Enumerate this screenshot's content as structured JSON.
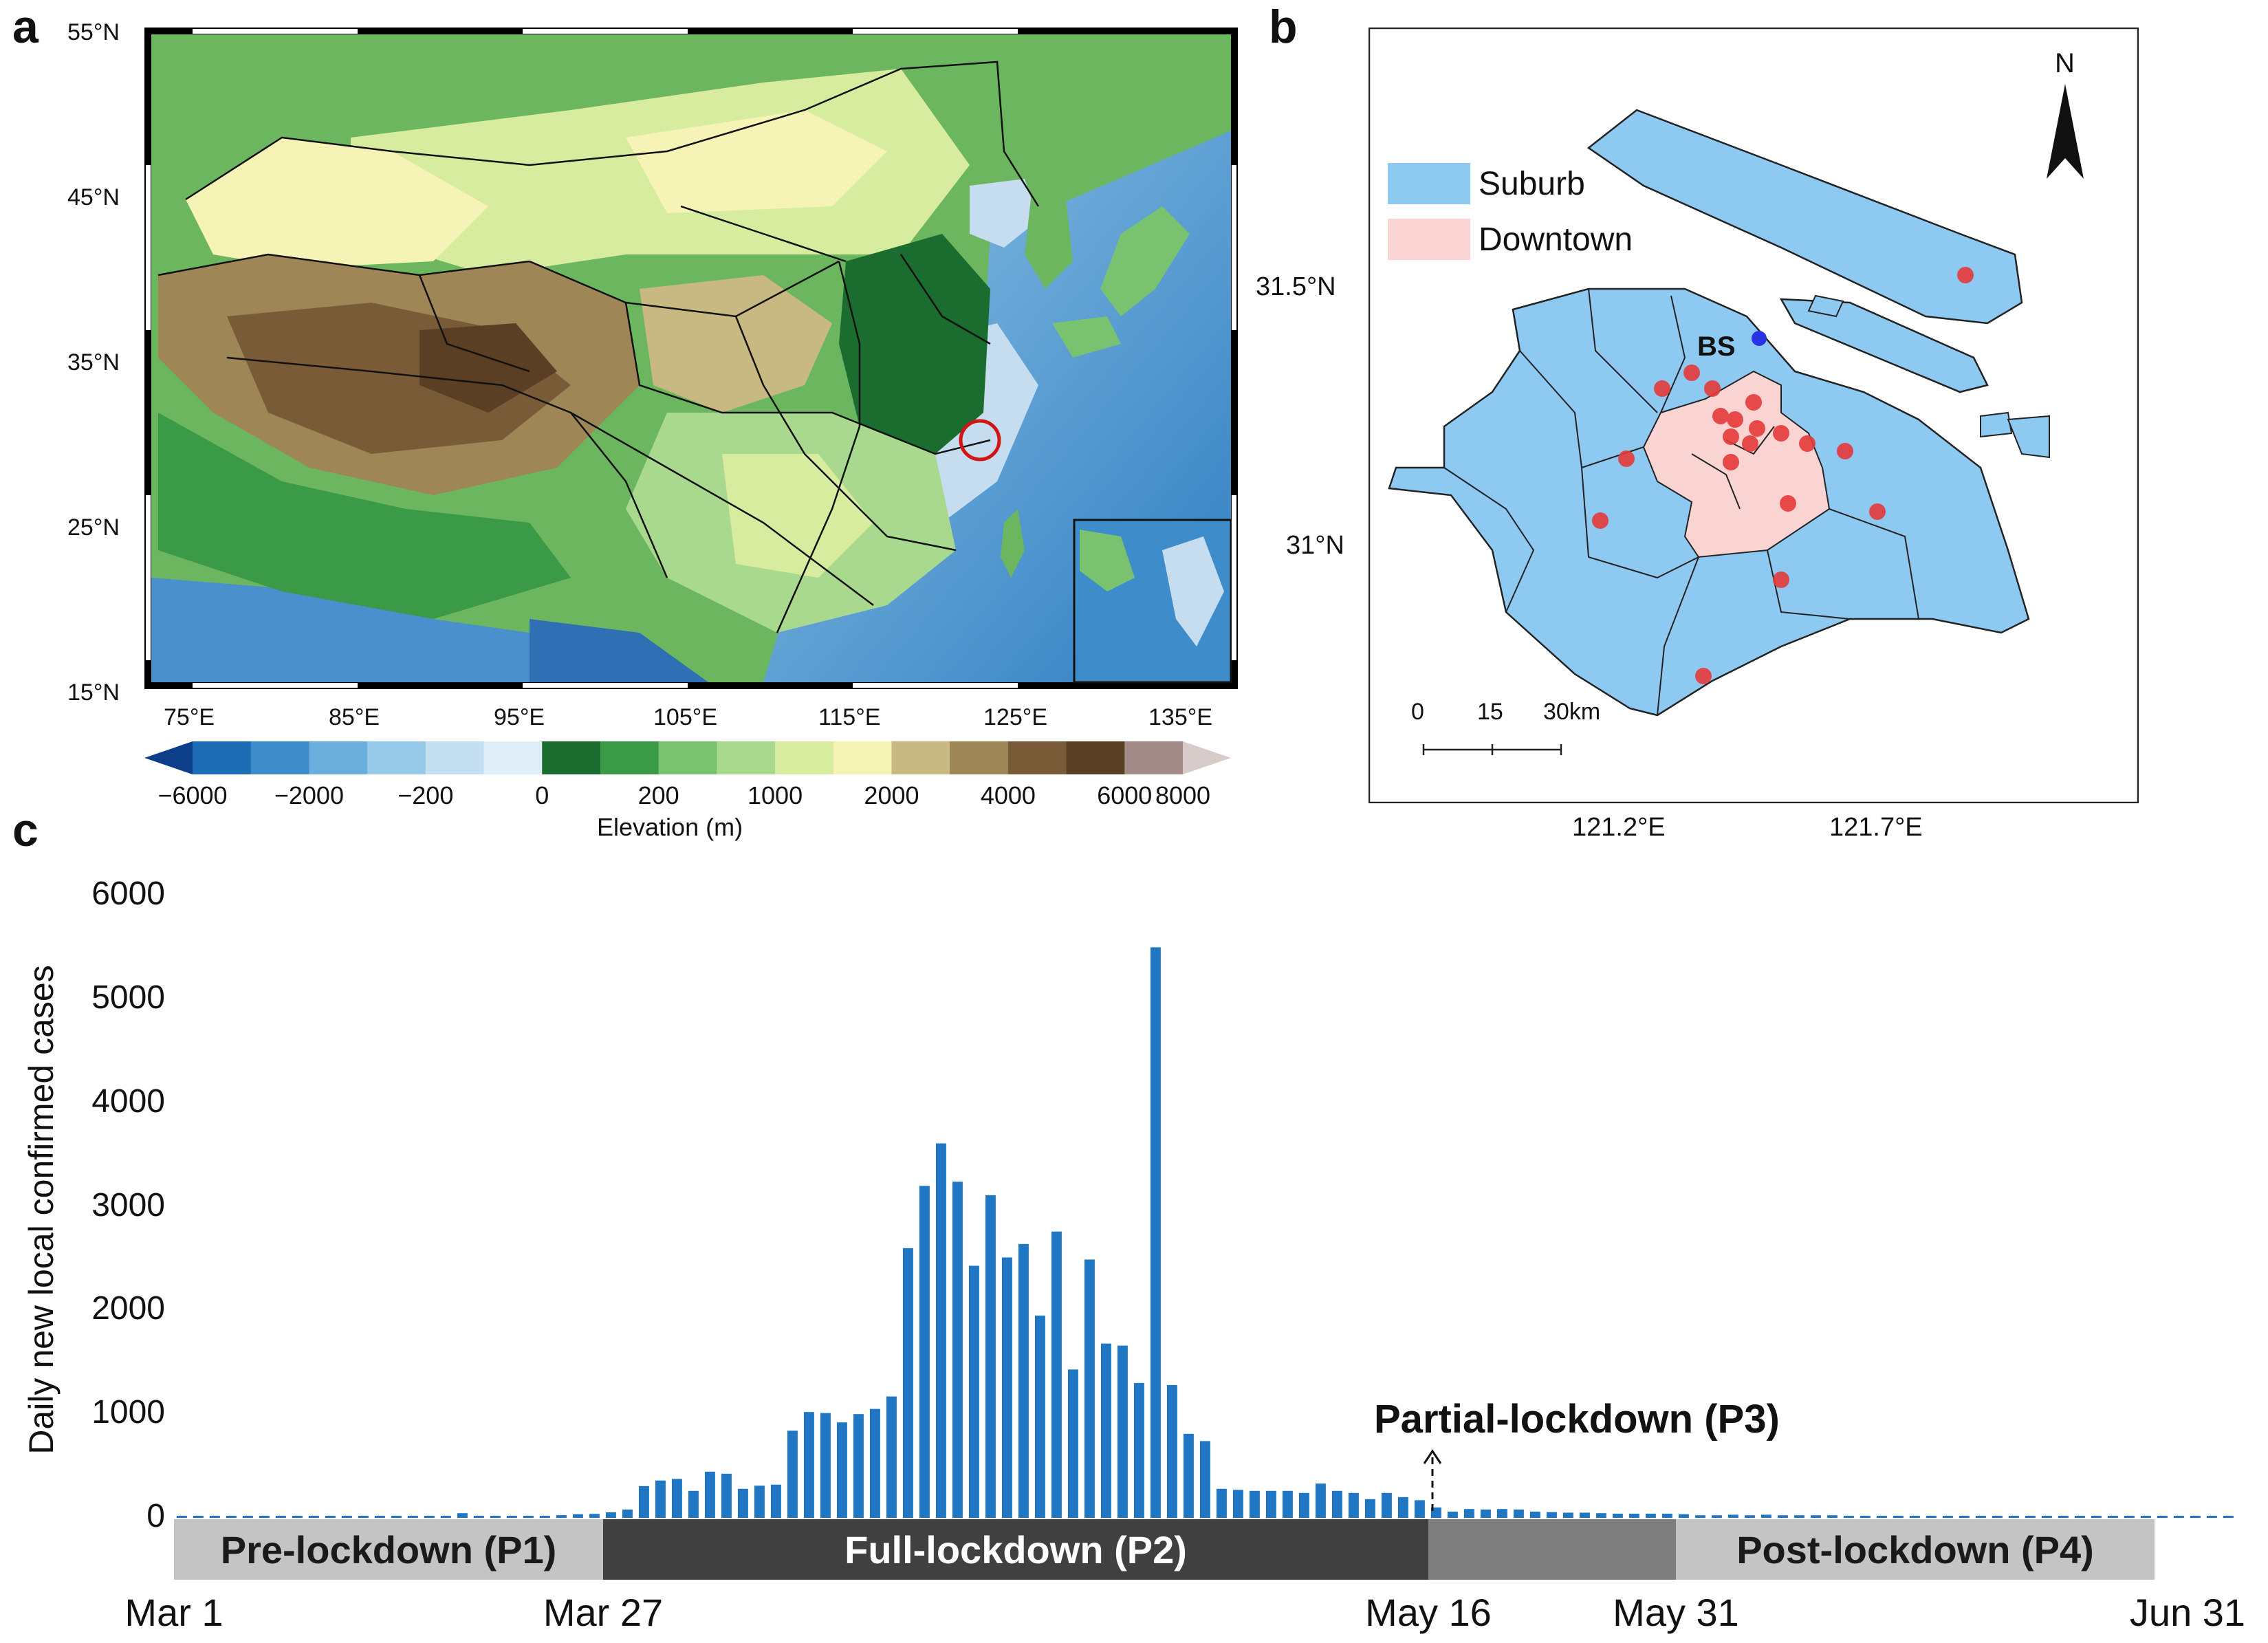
{
  "panels": {
    "a": {
      "label": "a",
      "lat_ticks": [
        "55°N",
        "45°N",
        "35°N",
        "25°N",
        "15°N"
      ],
      "lon_ticks": [
        "75°E",
        "85°E",
        "95°E",
        "105°E",
        "115°E",
        "125°E",
        "135°E"
      ],
      "colorbar": {
        "ticks": [
          "−6000",
          "−2000",
          "−200",
          "0",
          "200",
          "1000",
          "2000",
          "4000",
          "6000",
          "8000"
        ],
        "label": "Elevation (m)",
        "colors": [
          "#0d3e8a",
          "#1d6cb4",
          "#3e8cca",
          "#6aaedc",
          "#97c9e8",
          "#c4def2",
          "#dfeef9",
          "#1a6d2e",
          "#3a9a47",
          "#79c26f",
          "#a9d98e",
          "#d8ec9f",
          "#f5f4b6",
          "#c8b882",
          "#9f8656",
          "#7a5b38",
          "#5a3f25",
          "#a28a86",
          "#d7ccca"
        ]
      }
    },
    "b": {
      "label": "b",
      "legend": [
        {
          "label": "Suburb",
          "color": "#8ec9f2"
        },
        {
          "label": "Downtown",
          "color": "#fad4d3"
        }
      ],
      "north_label": "N",
      "station_label": "BS",
      "lat_ticks": [
        "31.5°N",
        "31°N"
      ],
      "lon_ticks": [
        "121.2°E",
        "121.7°E"
      ],
      "scale_labels": [
        "0",
        "15",
        "30km"
      ]
    },
    "c": {
      "label": "c",
      "annotation": "Partial-lockdown (P3)"
    }
  },
  "chart_data": {
    "type": "bar",
    "title": "",
    "xlabel": "",
    "ylabel": "Daily new local confirmed cases",
    "ylim": [
      0,
      6000
    ],
    "y_ticks": [
      "0",
      "1000",
      "2000",
      "3000",
      "4000",
      "5000",
      "6000"
    ],
    "x_tick_labels": [
      "Mar 1",
      "Mar 27",
      "May 16",
      "May 31",
      "Jun 31"
    ],
    "x_tick_days": [
      0,
      26,
      76,
      91,
      122
    ],
    "bar_color": "#1f77c4",
    "values": [
      2,
      4,
      2,
      3,
      1,
      5,
      3,
      3,
      2,
      8,
      3,
      2,
      6,
      20,
      5,
      8,
      11,
      45,
      10,
      17,
      18,
      7,
      11,
      26,
      35,
      38,
      53,
      80,
      306,
      360,
      375,
      260,
      445,
      425,
      280,
      310,
      320,
      840,
      1020,
      1010,
      920,
      1000,
      1050,
      1170,
      2600,
      3200,
      3610,
      3240,
      2430,
      3110,
      2510,
      2640,
      1950,
      2760,
      1430,
      2490,
      1680,
      1660,
      1300,
      5500,
      1280,
      810,
      740,
      280,
      270,
      260,
      260,
      260,
      240,
      330,
      260,
      240,
      180,
      240,
      200,
      170,
      100,
      60,
      85,
      80,
      85,
      80,
      60,
      55,
      50,
      50,
      45,
      40,
      40,
      40,
      40,
      35,
      25,
      25,
      30,
      25,
      30,
      25,
      25,
      25,
      25,
      20,
      20,
      20,
      20,
      15,
      20,
      15,
      15,
      15,
      15,
      15,
      15,
      12,
      10,
      10,
      10,
      10,
      8,
      5,
      5,
      0,
      5,
      0,
      0
    ],
    "phases": [
      {
        "label": "Pre-lockdown (P1)",
        "start_day": 0,
        "end_day": 26,
        "color": "#c4c4c4",
        "text_color": "#1a1a1a"
      },
      {
        "label": "Full-lockdown (P2)",
        "start_day": 26,
        "end_day": 76,
        "color": "#404040",
        "text_color": "#ffffff"
      },
      {
        "label": "",
        "start_day": 76,
        "end_day": 91,
        "color": "#7e7e7e",
        "text_color": "#ffffff"
      },
      {
        "label": "Post-lockdown (P4)",
        "start_day": 91,
        "end_day": 120,
        "color": "#c4c4c4",
        "text_color": "#1a1a1a"
      }
    ]
  }
}
